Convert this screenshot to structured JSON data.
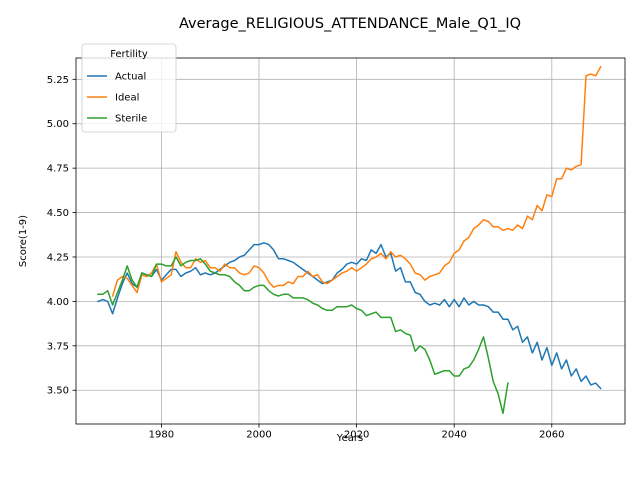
{
  "chart_data": {
    "type": "line",
    "title": "Average_RELIGIOUS_ATTENDANCE_Male_Q1_IQ",
    "xlabel": "Years",
    "ylabel": "Score(1-9)",
    "xlim": [
      1962.5,
      2075
    ],
    "ylim": [
      3.31,
      5.37
    ],
    "xticks": [
      1980,
      2000,
      2020,
      2040,
      2060
    ],
    "yticks": [
      3.5,
      3.75,
      4.0,
      4.25,
      4.5,
      4.75,
      5.0,
      5.25
    ],
    "grid": true,
    "legend": {
      "title": "Fertility",
      "position": "upper left"
    },
    "series": [
      {
        "name": "Actual",
        "color": "#1f77b4",
        "x": [
          1967,
          1968,
          1969,
          1970,
          1971,
          1972,
          1973,
          1974,
          1975,
          1976,
          1977,
          1978,
          1979,
          1980,
          1981,
          1982,
          1983,
          1984,
          1985,
          1986,
          1987,
          1988,
          1989,
          1990,
          1991,
          1992,
          1993,
          1994,
          1995,
          1996,
          1997,
          1998,
          1999,
          2000,
          2001,
          2002,
          2003,
          2004,
          2005,
          2006,
          2007,
          2008,
          2009,
          2010,
          2011,
          2012,
          2013,
          2014,
          2015,
          2016,
          2017,
          2018,
          2019,
          2020,
          2021,
          2022,
          2023,
          2024,
          2025,
          2026,
          2027,
          2028,
          2029,
          2030,
          2031,
          2032,
          2033,
          2034,
          2035,
          2036,
          2037,
          2038,
          2039,
          2040,
          2041,
          2042,
          2043,
          2044,
          2045,
          2046,
          2047,
          2048,
          2049,
          2050,
          2051,
          2052,
          2053,
          2054,
          2055,
          2056,
          2057,
          2058,
          2059,
          2060,
          2061,
          2062,
          2063,
          2064,
          2065,
          2066,
          2067,
          2068,
          2069,
          2070
        ],
        "values": [
          4.0,
          4.01,
          4.0,
          3.93,
          4.02,
          4.1,
          4.16,
          4.1,
          4.08,
          4.16,
          4.15,
          4.14,
          4.18,
          4.12,
          4.15,
          4.18,
          4.18,
          4.14,
          4.16,
          4.17,
          4.19,
          4.15,
          4.16,
          4.15,
          4.16,
          4.18,
          4.2,
          4.22,
          4.23,
          4.25,
          4.26,
          4.29,
          4.32,
          4.32,
          4.33,
          4.32,
          4.29,
          4.24,
          4.24,
          4.23,
          4.22,
          4.2,
          4.18,
          4.16,
          4.14,
          4.12,
          4.1,
          4.11,
          4.12,
          4.16,
          4.18,
          4.21,
          4.22,
          4.21,
          4.24,
          4.23,
          4.29,
          4.27,
          4.32,
          4.25,
          4.27,
          4.17,
          4.19,
          4.11,
          4.11,
          4.05,
          4.04,
          4.0,
          3.98,
          3.99,
          3.98,
          4.01,
          3.97,
          4.01,
          3.97,
          4.02,
          3.98,
          4.0,
          3.98,
          3.98,
          3.97,
          3.94,
          3.94,
          3.9,
          3.9,
          3.84,
          3.86,
          3.77,
          3.8,
          3.71,
          3.77,
          3.67,
          3.74,
          3.64,
          3.71,
          3.62,
          3.67,
          3.58,
          3.62,
          3.55,
          3.58,
          3.53,
          3.54,
          3.51
        ]
      },
      {
        "name": "Ideal",
        "color": "#ff7f0e",
        "x": [
          1970,
          1971,
          1972,
          1973,
          1974,
          1975,
          1976,
          1977,
          1978,
          1979,
          1980,
          1981,
          1982,
          1983,
          1984,
          1985,
          1986,
          1987,
          1988,
          1989,
          1990,
          1991,
          1992,
          1993,
          1994,
          1995,
          1996,
          1997,
          1998,
          1999,
          2000,
          2001,
          2002,
          2003,
          2004,
          2005,
          2006,
          2007,
          2008,
          2009,
          2010,
          2011,
          2012,
          2013,
          2014,
          2015,
          2016,
          2017,
          2018,
          2019,
          2020,
          2021,
          2022,
          2023,
          2024,
          2025,
          2026,
          2027,
          2028,
          2029,
          2030,
          2031,
          2032,
          2033,
          2034,
          2035,
          2036,
          2037,
          2038,
          2039,
          2040,
          2041,
          2042,
          2043,
          2044,
          2045,
          2046,
          2047,
          2048,
          2049,
          2050,
          2051,
          2052,
          2053,
          2054,
          2055,
          2056,
          2057,
          2058,
          2059,
          2060,
          2061,
          2062,
          2063,
          2064,
          2065,
          2066,
          2067,
          2068,
          2069,
          2070
        ],
        "values": [
          4.03,
          4.12,
          4.14,
          4.13,
          4.09,
          4.05,
          4.15,
          4.14,
          4.16,
          4.21,
          4.11,
          4.13,
          4.15,
          4.28,
          4.22,
          4.19,
          4.19,
          4.24,
          4.22,
          4.23,
          4.19,
          4.19,
          4.17,
          4.21,
          4.19,
          4.19,
          4.16,
          4.15,
          4.16,
          4.2,
          4.19,
          4.16,
          4.11,
          4.08,
          4.09,
          4.09,
          4.11,
          4.1,
          4.14,
          4.14,
          4.17,
          4.14,
          4.15,
          4.11,
          4.1,
          4.12,
          4.14,
          4.16,
          4.17,
          4.19,
          4.17,
          4.19,
          4.21,
          4.24,
          4.25,
          4.27,
          4.24,
          4.28,
          4.25,
          4.26,
          4.24,
          4.21,
          4.16,
          4.15,
          4.12,
          4.14,
          4.15,
          4.16,
          4.2,
          4.22,
          4.27,
          4.29,
          4.34,
          4.36,
          4.41,
          4.43,
          4.46,
          4.45,
          4.42,
          4.42,
          4.4,
          4.41,
          4.4,
          4.43,
          4.41,
          4.48,
          4.46,
          4.54,
          4.51,
          4.6,
          4.59,
          4.69,
          4.69,
          4.75,
          4.74,
          4.76,
          4.77,
          5.27,
          5.28,
          5.27,
          5.32
        ]
      },
      {
        "name": "Sterile",
        "color": "#2ca02c",
        "x": [
          1967,
          1968,
          1969,
          1970,
          1971,
          1972,
          1973,
          1974,
          1975,
          1976,
          1977,
          1978,
          1979,
          1980,
          1981,
          1982,
          1983,
          1984,
          1985,
          1986,
          1987,
          1988,
          1989,
          1990,
          1991,
          1992,
          1993,
          1994,
          1995,
          1996,
          1997,
          1998,
          1999,
          2000,
          2001,
          2002,
          2003,
          2004,
          2005,
          2006,
          2007,
          2008,
          2009,
          2010,
          2011,
          2012,
          2013,
          2014,
          2015,
          2016,
          2017,
          2018,
          2019,
          2020,
          2021,
          2022,
          2023,
          2024,
          2025,
          2026,
          2027,
          2028,
          2029,
          2030,
          2031,
          2032,
          2033,
          2034,
          2035,
          2036,
          2037,
          2038,
          2039,
          2040,
          2041,
          2042,
          2043,
          2044,
          2045,
          2046,
          2047,
          2048,
          2049,
          2050,
          2051
        ],
        "values": [
          4.04,
          4.04,
          4.06,
          3.98,
          4.05,
          4.12,
          4.2,
          4.12,
          4.08,
          4.16,
          4.15,
          4.14,
          4.21,
          4.21,
          4.2,
          4.2,
          4.25,
          4.2,
          4.22,
          4.23,
          4.23,
          4.24,
          4.21,
          4.17,
          4.16,
          4.15,
          4.15,
          4.14,
          4.11,
          4.09,
          4.06,
          4.06,
          4.08,
          4.09,
          4.09,
          4.06,
          4.04,
          4.03,
          4.04,
          4.04,
          4.02,
          4.02,
          4.02,
          4.01,
          3.99,
          3.98,
          3.96,
          3.95,
          3.95,
          3.97,
          3.97,
          3.97,
          3.98,
          3.96,
          3.95,
          3.92,
          3.93,
          3.94,
          3.91,
          3.91,
          3.91,
          3.83,
          3.84,
          3.82,
          3.81,
          3.72,
          3.75,
          3.73,
          3.67,
          3.59,
          3.6,
          3.61,
          3.61,
          3.58,
          3.58,
          3.62,
          3.63,
          3.67,
          3.73,
          3.8,
          3.68,
          3.55,
          3.48,
          3.37,
          3.54
        ]
      }
    ]
  }
}
